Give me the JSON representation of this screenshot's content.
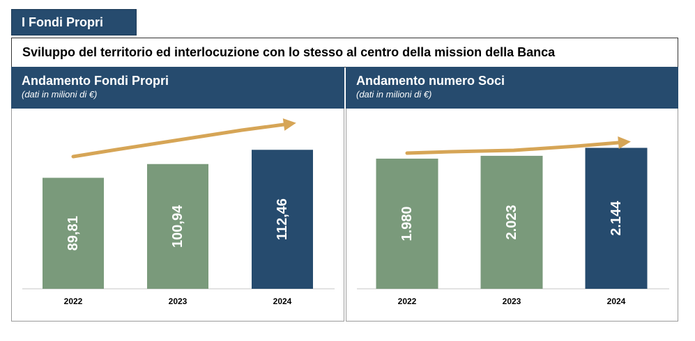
{
  "header": {
    "tag": "I Fondi Propri",
    "mission": "Sviluppo del territorio ed interlocuzione con lo stesso al centro della mission della Banca"
  },
  "colors": {
    "navy": "#264b6e",
    "green": "#7a9a7b",
    "arrow": "#d6a556",
    "axis": "#d9d9d9"
  },
  "chart_data": [
    {
      "type": "bar",
      "title": "Andamento Fondi Propri",
      "subtitle": "(dati in milioni di €)",
      "categories": [
        "2022",
        "2023",
        "2024"
      ],
      "values": [
        89.81,
        100.94,
        112.46
      ],
      "labels": [
        "89,81",
        "100,94",
        "112,46"
      ],
      "bar_colors": [
        "#7a9a7b",
        "#7a9a7b",
        "#264b6e"
      ],
      "ylim": [
        0,
        125
      ],
      "trend_arrow": "increasing"
    },
    {
      "type": "bar",
      "title": "Andamento numero Soci",
      "subtitle": "(dati in milioni di €)",
      "categories": [
        "2022",
        "2023",
        "2024"
      ],
      "values": [
        1980,
        2023,
        2144
      ],
      "labels": [
        "1.980",
        "2.023",
        "2.144"
      ],
      "bar_colors": [
        "#7a9a7b",
        "#7a9a7b",
        "#264b6e"
      ],
      "ylim": [
        0,
        2350
      ],
      "trend_arrow": "increasing"
    }
  ]
}
